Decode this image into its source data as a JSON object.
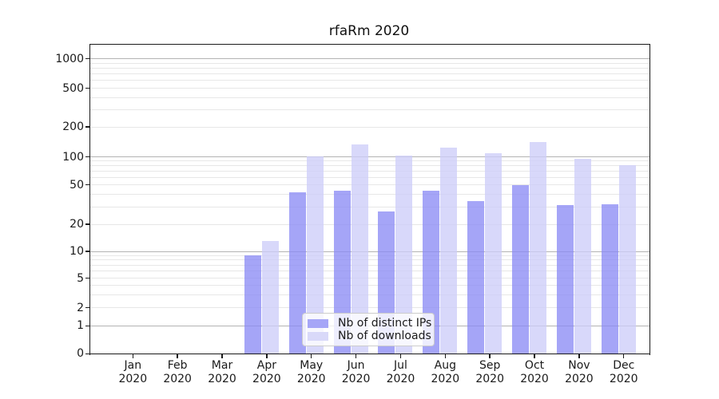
{
  "title": "rfaRm 2020",
  "legend": {
    "items": [
      {
        "label": "Nb of distinct IPs",
        "color": "#a6a6f7"
      },
      {
        "label": "Nb of downloads",
        "color": "#d9d9f9"
      }
    ]
  },
  "colors": {
    "bar_distinct_ips": "rgba(140,140,245,0.78)",
    "bar_downloads": "rgba(205,205,248,0.78)",
    "major_gridline": "#b3b3b3",
    "minor_gridline": "#e7e7e7",
    "spine": "#1a1a1a",
    "background": "#ffffff"
  },
  "chart_data": {
    "type": "bar",
    "title": "rfaRm 2020",
    "categories": [
      "Jan 2020",
      "Feb 2020",
      "Mar 2020",
      "Apr 2020",
      "May 2020",
      "Jun 2020",
      "Jul 2020",
      "Aug 2020",
      "Sep 2020",
      "Oct 2020",
      "Nov 2020",
      "Dec 2020"
    ],
    "x_tick_months": [
      "Jan",
      "Feb",
      "Mar",
      "Apr",
      "May",
      "Jun",
      "Jul",
      "Aug",
      "Sep",
      "Oct",
      "Nov",
      "Dec"
    ],
    "x_tick_year": "2020",
    "series": [
      {
        "name": "Nb of distinct IPs",
        "values": [
          0,
          0,
          0,
          9,
          42,
          44,
          27,
          44,
          34,
          50,
          31,
          32
        ]
      },
      {
        "name": "Nb of downloads",
        "values": [
          0,
          0,
          0,
          13,
          101,
          133,
          103,
          123,
          109,
          140,
          95,
          81
        ]
      }
    ],
    "y_ticks": [
      0,
      1,
      2,
      5,
      10,
      20,
      50,
      100,
      200,
      500,
      1000
    ],
    "y_tick_labels": [
      "0",
      "1",
      "2",
      "5",
      "10",
      "20",
      "50",
      "100",
      "200",
      "500",
      "1000"
    ],
    "yscale": "symlog",
    "ylim": [
      0,
      1400
    ],
    "grid": true,
    "legend_position": "lower center"
  }
}
